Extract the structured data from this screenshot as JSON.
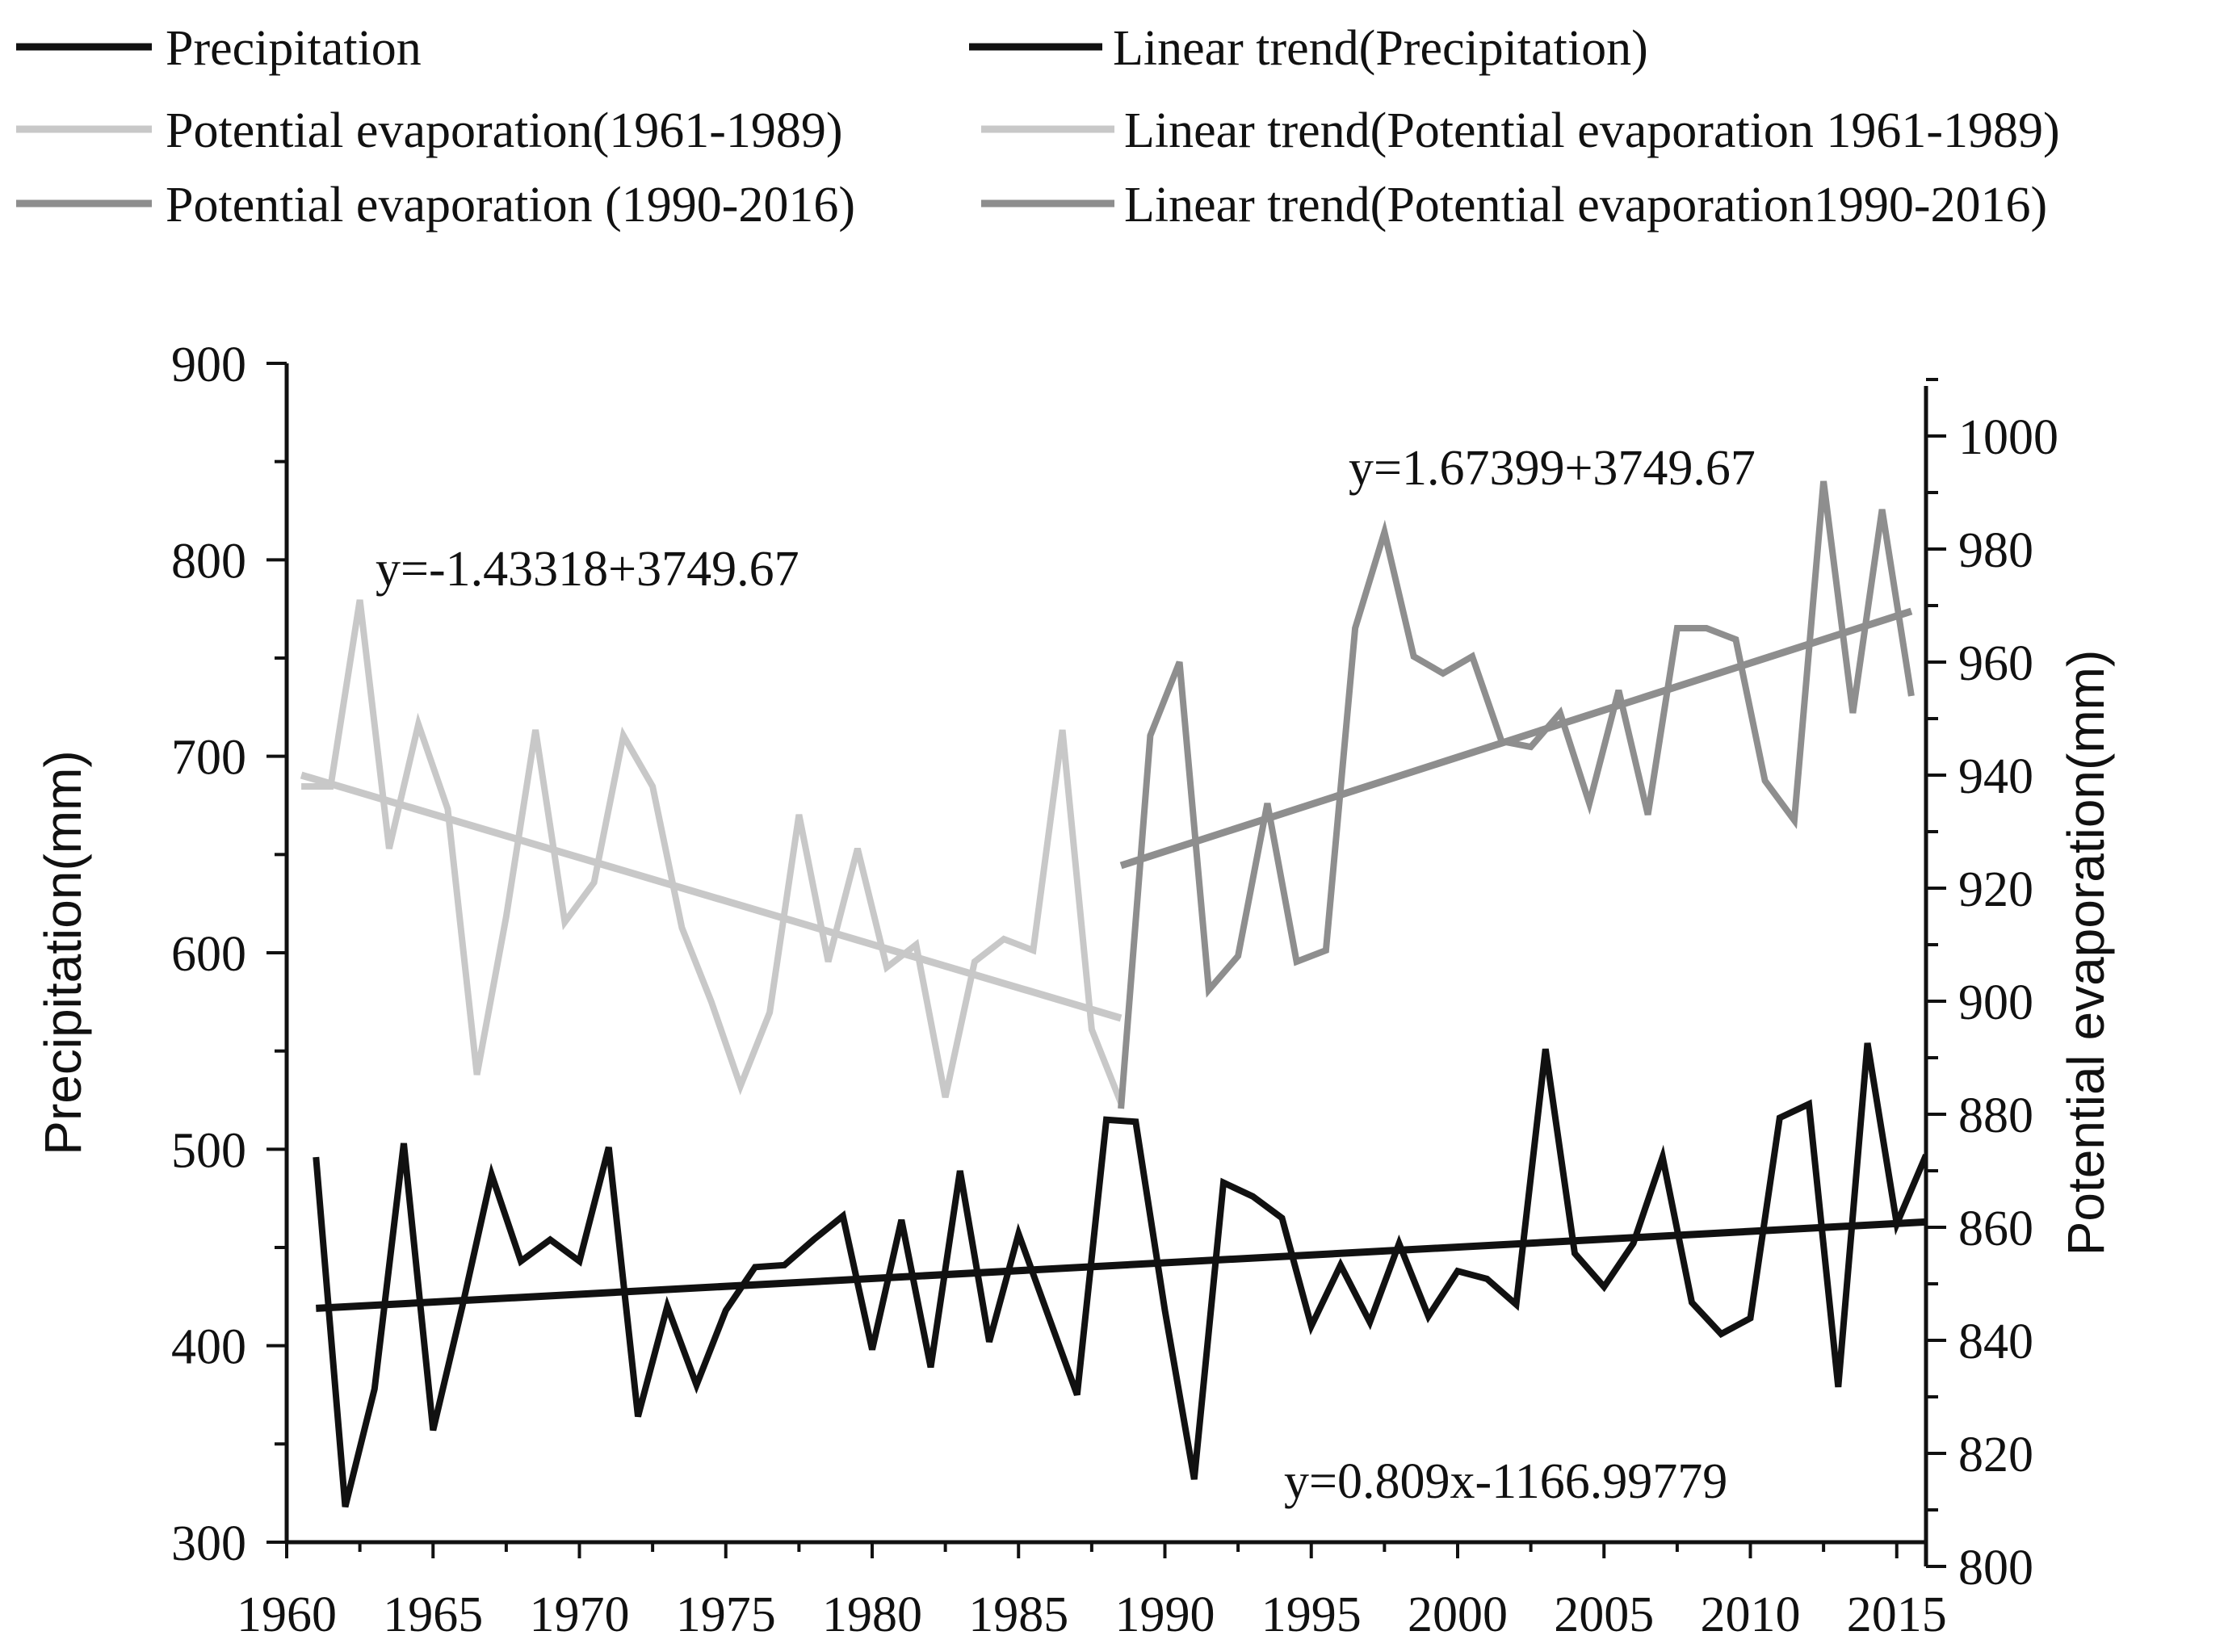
{
  "chart_data": {
    "type": "line",
    "title": "",
    "xlabel": "",
    "ylabel_left": "Precipitation(mm)",
    "ylabel_right": "Potential evaporation(mm)",
    "xlim": [
      1960,
      2016
    ],
    "ylim_left": [
      300,
      900
    ],
    "ylim_right": [
      800,
      1010
    ],
    "x_ticks": [
      "1960",
      "1965",
      "1970",
      "1975",
      "1980",
      "1985",
      "1990",
      "1995",
      "2000",
      "2005",
      "2010",
      "2015"
    ],
    "y_left_ticks": [
      "300",
      "400",
      "500",
      "600",
      "700",
      "800",
      "900"
    ],
    "y_right_ticks": [
      "800",
      "820",
      "840",
      "860",
      "880",
      "900",
      "920",
      "940",
      "960",
      "980",
      "1000"
    ],
    "colors": {
      "precip": "#111111",
      "pe1": "#c8c8c8",
      "pe2": "#8e8e8e",
      "axis": "#111111"
    },
    "legend": {
      "precip": "Precipitation",
      "trend_precip": "Linear trend(Precipitation)",
      "pe1": "Potential evaporation(1961-1989)",
      "trend_pe1": "Linear trend(Potential evaporation 1961-1989)",
      "pe2": "Potential evaporation (1990-2016)",
      "trend_pe2": "Linear trend(Potential evaporation1990-2016)"
    },
    "annotations": {
      "eq_pe1": "y=-1.43318+3749.67",
      "eq_pe2": "y=1.67399+3749.67",
      "eq_precip": "y=0.809x-1166.99779"
    },
    "series": [
      {
        "name": "Precipitation",
        "axis": "left",
        "color_key": "precip",
        "x": [
          1961,
          1962,
          1963,
          1964,
          1965,
          1966,
          1967,
          1968,
          1969,
          1970,
          1971,
          1972,
          1973,
          1974,
          1975,
          1976,
          1977,
          1978,
          1979,
          1980,
          1981,
          1982,
          1983,
          1984,
          1985,
          1986,
          1987,
          1988,
          1989,
          1990,
          1991,
          1992,
          1993,
          1994,
          1995,
          1996,
          1997,
          1998,
          1999,
          2000,
          2001,
          2002,
          2003,
          2004,
          2005,
          2006,
          2007,
          2008,
          2009,
          2010,
          2011,
          2012,
          2013,
          2014,
          2015,
          2016
        ],
        "values": [
          496,
          318,
          378,
          503,
          357,
          420,
          487,
          443,
          454,
          443,
          501,
          364,
          420,
          380,
          418,
          440,
          441,
          454,
          466,
          398,
          464,
          389,
          489,
          402,
          457,
          416,
          375,
          515,
          514,
          418,
          332,
          483,
          476,
          465,
          410,
          441,
          412,
          452,
          415,
          438,
          434,
          421,
          551,
          447,
          430,
          452,
          496,
          422,
          406,
          414,
          516,
          523,
          379,
          554,
          462,
          497
        ]
      },
      {
        "name": "Potential evaporation(1961-1989)",
        "axis": "right",
        "color_key": "pe1",
        "x": [
          1960.5,
          1961.5,
          1962.5,
          1963.5,
          1964.5,
          1965.5,
          1966.5,
          1967.5,
          1968.5,
          1969.5,
          1970.5,
          1971.5,
          1972.5,
          1973.5,
          1974.5,
          1975.5,
          1976.5,
          1977.5,
          1978.5,
          1979.5,
          1980.5,
          1981.5,
          1982.5,
          1983.5,
          1984.5,
          1985.5,
          1986.5,
          1987.5,
          1988.5
        ],
        "values": [
          938,
          938,
          971,
          927,
          949,
          934,
          887,
          915,
          948,
          914,
          921,
          947,
          938,
          913,
          900,
          885,
          898,
          933,
          907,
          927,
          906,
          910,
          883,
          907,
          911,
          909,
          948,
          895,
          882
        ]
      },
      {
        "name": "Linear trend(Potential evaporation 1961-1989)",
        "axis": "right",
        "color_key": "pe1",
        "trend": true,
        "x": [
          1960.5,
          1988.5
        ],
        "values": [
          940,
          897
        ]
      },
      {
        "name": "Potential evaporation (1990-2016)",
        "axis": "right",
        "color_key": "pe2",
        "x": [
          1988.5,
          1989.5,
          1990.5,
          1991.5,
          1992.5,
          1993.5,
          1994.5,
          1995.5,
          1996.5,
          1997.5,
          1998.5,
          1999.5,
          2000.5,
          2001.5,
          2002.5,
          2003.5,
          2004.5,
          2005.5,
          2006.5,
          2007.5,
          2008.5,
          2009.5,
          2010.5,
          2011.5,
          2012.5,
          2013.5,
          2014.5,
          2015.5
        ],
        "values": [
          881,
          947,
          960,
          902,
          908,
          935,
          907,
          909,
          966,
          983,
          961,
          958,
          961,
          946,
          945,
          951,
          935,
          955,
          933,
          966,
          966,
          964,
          939,
          932,
          992,
          951,
          987,
          954
        ]
      },
      {
        "name": "Linear trend(Potential evaporation1990-2016)",
        "axis": "right",
        "color_key": "pe2",
        "trend": true,
        "x": [
          1988.5,
          2015.5
        ],
        "values": [
          924,
          969
        ]
      },
      {
        "name": "Linear trend(Precipitation)",
        "axis": "left",
        "color_key": "precip",
        "trend": true,
        "x": [
          1961,
          2016
        ],
        "values": [
          419,
          463
        ]
      }
    ]
  }
}
